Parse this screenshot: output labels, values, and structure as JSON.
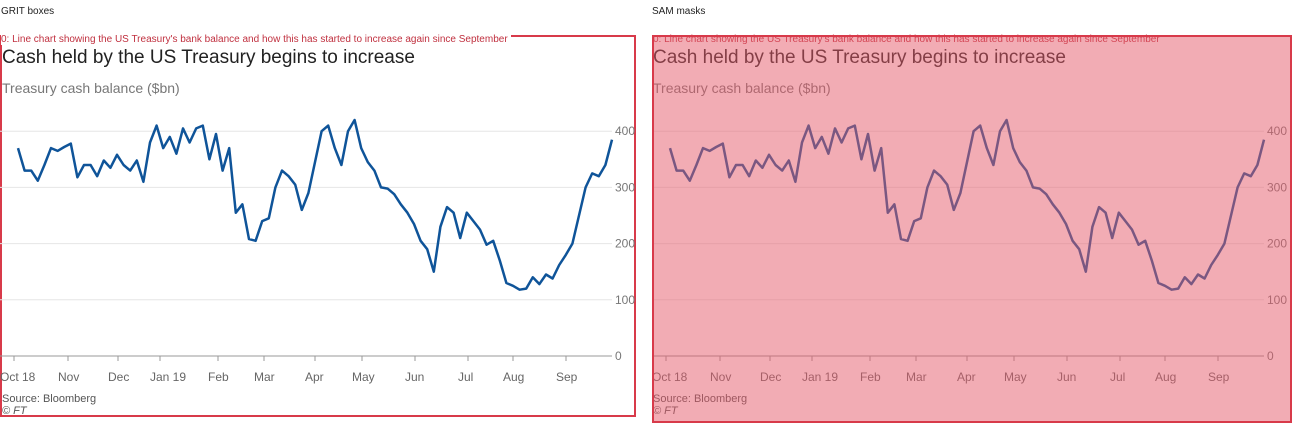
{
  "panels": {
    "left_label": "GRIT boxes",
    "right_label": "SAM masks"
  },
  "annotation": {
    "caption": "0: Line chart showing the US Treasury's bank balance and how this has started to increase again since September"
  },
  "chart_data": {
    "type": "line",
    "title": "Cash held by the US Treasury begins to increase",
    "ylabel": "Treasury cash balance ($bn)",
    "source": "Source: Bloomberg",
    "copyright": "© FT",
    "ylim": [
      0,
      420
    ],
    "yticks": [
      0,
      100,
      200,
      300,
      400
    ],
    "xlabels": [
      "Oct 18",
      "Nov",
      "Dec",
      "Jan 19",
      "Feb",
      "Mar",
      "Apr",
      "May",
      "Jun",
      "Jul",
      "Aug",
      "Sep"
    ],
    "grid": true,
    "color": "#0f5499",
    "series": [
      {
        "values": [
          370,
          330,
          330,
          312,
          340,
          370,
          365,
          372,
          378,
          318,
          340,
          340,
          320,
          348,
          335,
          358,
          340,
          330,
          348,
          310,
          380,
          410,
          370,
          390,
          360,
          405,
          380,
          405,
          410,
          350,
          395,
          330,
          370,
          255,
          270,
          208,
          205,
          240,
          245,
          300,
          330,
          320,
          305,
          260,
          290,
          345,
          400,
          410,
          370,
          340,
          400,
          420,
          370,
          345,
          330,
          300,
          298,
          288,
          270,
          255,
          235,
          205,
          190,
          150,
          230,
          265,
          255,
          210,
          255,
          240,
          225,
          198,
          205,
          170,
          130,
          125,
          118,
          120,
          140,
          128,
          145,
          138,
          162,
          180,
          200,
          250,
          300,
          325,
          320,
          340,
          385
        ]
      }
    ]
  }
}
